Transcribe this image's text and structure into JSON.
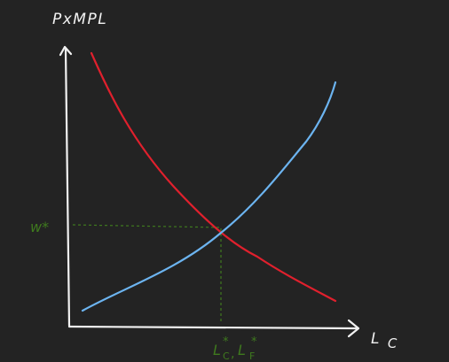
{
  "colors": {
    "background": "#232323",
    "axes": "#f2f2f2",
    "demand_curve": "#e0202d",
    "supply_curve": "#6cb4f0",
    "equilibrium_guides": "#3f7a1e"
  },
  "labels": {
    "y_axis": "PxMPL",
    "x_axis": "L",
    "x_axis_subscript": "C",
    "equilibrium_wage": "w*",
    "equilibrium_quantity_1": "L",
    "equilibrium_quantity_1_super": "*",
    "equilibrium_quantity_1_sub": "C",
    "equilibrium_separator": ",",
    "equilibrium_quantity_2": "L",
    "equilibrium_quantity_2_super": "*",
    "equilibrium_quantity_2_sub": "F"
  }
}
